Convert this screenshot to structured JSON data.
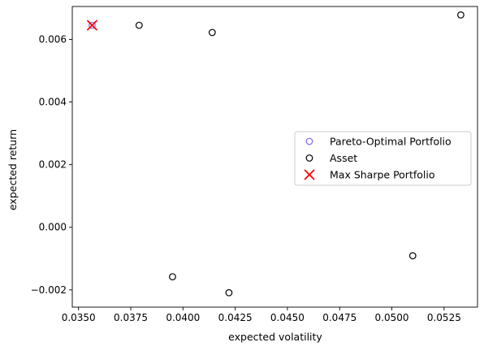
{
  "chart_data": {
    "type": "scatter",
    "xlabel": "expected volatility",
    "ylabel": "expected return",
    "xlim": [
      0.0347,
      0.0541
    ],
    "ylim": [
      -0.00255,
      0.00705
    ],
    "x_ticks": [
      0.035,
      0.0375,
      0.04,
      0.0425,
      0.045,
      0.0475,
      0.05,
      0.0525
    ],
    "x_tick_labels": [
      "0.0350",
      "0.0375",
      "0.0400",
      "0.0425",
      "0.0450",
      "0.0475",
      "0.0500",
      "0.0525"
    ],
    "y_ticks": [
      -0.002,
      0.0,
      0.002,
      0.004,
      0.006
    ],
    "y_tick_labels": [
      "−0.002",
      "0.000",
      "0.002",
      "0.004",
      "0.006"
    ],
    "grid": false,
    "legend_placement": "center-right",
    "series": [
      {
        "name": "Pareto-Optimal Portfolio",
        "marker": "open-circle",
        "color": "#7b68ee",
        "points": [
          [
            0.03565,
            0.00645
          ]
        ]
      },
      {
        "name": "Asset",
        "marker": "open-circle",
        "color": "#000000",
        "points": [
          [
            0.0379,
            0.00645
          ],
          [
            0.0414,
            0.00622
          ],
          [
            0.0533,
            0.00678
          ],
          [
            0.0395,
            -0.00158
          ],
          [
            0.0422,
            -0.00209
          ],
          [
            0.051,
            -0.00091
          ]
        ]
      },
      {
        "name": "Max Sharpe Portfolio",
        "marker": "x",
        "color": "#ff0000",
        "points": [
          [
            0.03565,
            0.00645
          ]
        ]
      }
    ]
  }
}
